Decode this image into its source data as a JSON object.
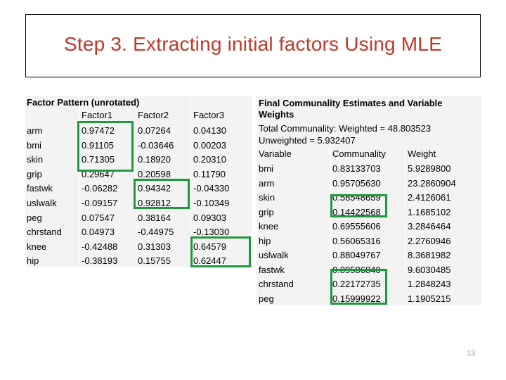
{
  "slide": {
    "title": "Step 3. Extracting initial factors Using MLE",
    "page_number": "13"
  },
  "left_table": {
    "title": "Factor Pattern (unrotated)",
    "headers": [
      "",
      "Factor1",
      "Factor2",
      "Factor3"
    ],
    "rows": [
      [
        "arm",
        "0.97472",
        "0.07264",
        "0.04130"
      ],
      [
        "bmi",
        "0.91105",
        "-0.03646",
        "0.00203"
      ],
      [
        "skin",
        "0.71305",
        "0.18920",
        "0.20310"
      ],
      [
        "grip",
        "0.29647",
        "0.20598",
        "0.11790"
      ],
      [
        "fastwk",
        "-0.06282",
        "0.94342",
        "-0.04330"
      ],
      [
        "uslwalk",
        "-0.09157",
        "0.92812",
        "-0.10349"
      ],
      [
        "peg",
        "0.07547",
        "0.38164",
        "0.09303"
      ],
      [
        "chrstand",
        "0.04973",
        "-0.44975",
        "-0.13030"
      ],
      [
        "knee",
        "-0.42488",
        "0.31303",
        "0.64579"
      ],
      [
        "hip",
        "-0.38193",
        "0.15755",
        "0.62447"
      ]
    ],
    "highlight_color": "#1e9a3c"
  },
  "right_table": {
    "title_line1": "Final Communality Estimates and Variable",
    "title_line2": "Weights",
    "total_weighted": "Total Communality: Weighted = 48.803523",
    "total_unweighted": "Unweighted = 5.932407",
    "headers": [
      "Variable",
      "Communality",
      "Weight"
    ],
    "rows": [
      [
        "bmi",
        "0.83133703",
        "5.9289800"
      ],
      [
        "arm",
        "0.95705630",
        "23.2860904"
      ],
      [
        "skin",
        "0.58548659",
        "2.4126061"
      ],
      [
        "grip",
        "0.14422568",
        "1.1685102"
      ],
      [
        "knee",
        "0.69555606",
        "3.2846464"
      ],
      [
        "hip",
        "0.56065316",
        "2.2760946"
      ],
      [
        "uslwalk",
        "0.88049767",
        "8.3681982"
      ],
      [
        "fastwk",
        "0.89586840",
        "9.6030485"
      ],
      [
        "chrstand",
        "0.22172735",
        "1.2848243"
      ],
      [
        "peg",
        "0.15999922",
        "1.1905215"
      ]
    ]
  }
}
